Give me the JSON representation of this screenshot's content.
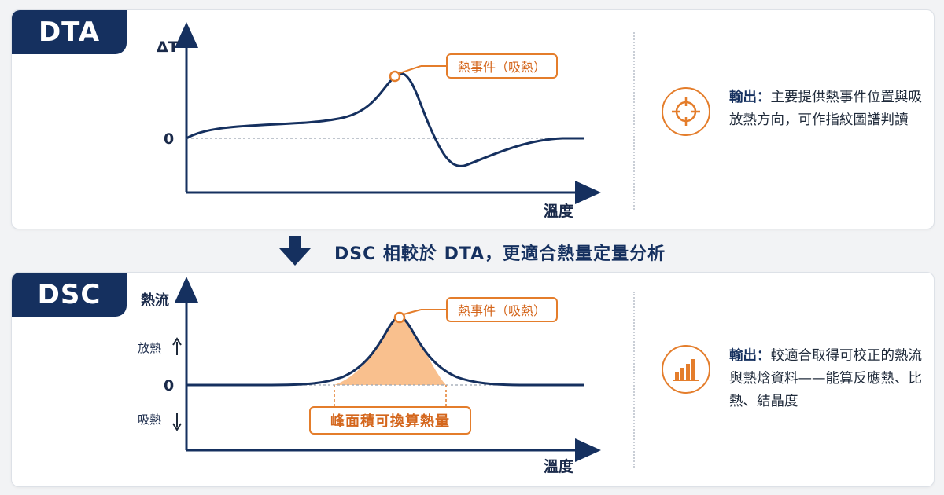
{
  "dta": {
    "tag": "DTA",
    "y_axis_label": "ΔT",
    "x_axis_label": "溫度",
    "zero_label": "0",
    "callout": "熱事件（吸熱）",
    "output_lead": "輸出：",
    "output_text": "主要提供熱事件位置與吸放熱方向，可作指紋圖譜判讀",
    "icon": "crosshair-target-icon"
  },
  "transition": {
    "text": "DSC 相較於 DTA，更適合熱量定量分析",
    "icon": "down-arrow-icon"
  },
  "dsc": {
    "tag": "DSC",
    "y_axis_label": "熱流",
    "x_axis_label": "溫度",
    "zero_label": "0",
    "release_label": "放熱",
    "absorb_label": "吸熱",
    "callout": "熱事件（吸熱）",
    "area_label": "峰面積可換算熱量",
    "output_lead": "輸出：",
    "output_text": "較適合取得可校正的熱流與熱焓資料——能算反應熱、比熱、結晶度",
    "icon": "bar-chart-icon"
  },
  "colors": {
    "navy": "#15305f",
    "orange": "#e47d2b",
    "peak_fill": "#f9c08e"
  }
}
